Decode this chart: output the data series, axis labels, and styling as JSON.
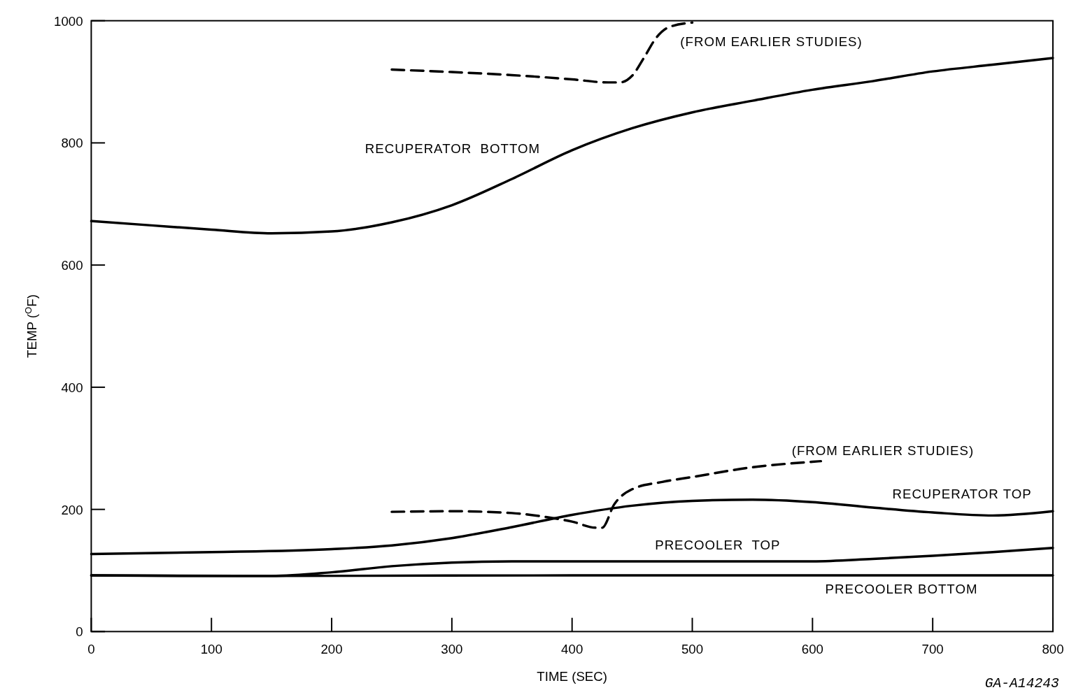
{
  "chart_data": {
    "type": "line",
    "xlabel": "TIME (SEC)",
    "ylabel": "TEMP ($^{O}$F)",
    "xlim": [
      0,
      800
    ],
    "ylim": [
      0,
      1000
    ],
    "xticks": [
      0,
      100,
      200,
      300,
      400,
      500,
      600,
      700,
      800
    ],
    "yticks": [
      0,
      200,
      400,
      600,
      800,
      1000
    ],
    "grid": false,
    "marker": "none",
    "series": [
      {
        "name": "RECUPERATOR  BOTTOM",
        "color": "#000000",
        "line_style": "solid",
        "x": [
          0,
          50,
          100,
          150,
          200,
          250,
          300,
          350,
          400,
          450,
          500,
          550,
          600,
          650,
          700,
          750,
          800
        ],
        "values": [
          672,
          665,
          658,
          652,
          655,
          670,
          698,
          741,
          788,
          824,
          850,
          869,
          887,
          901,
          917,
          928,
          939
        ]
      },
      {
        "name": "(FROM EARLIER STUDIES)",
        "color": "#000000",
        "line_style": "dashed",
        "x": [
          250,
          300,
          350,
          400,
          430,
          440,
          450,
          460,
          470,
          480,
          500
        ],
        "values": [
          920,
          916,
          911,
          904,
          899,
          899,
          910,
          940,
          972,
          989,
          997
        ]
      },
      {
        "name": "RECUPERATOR TOP",
        "color": "#000000",
        "line_style": "solid",
        "x": [
          0,
          100,
          200,
          250,
          300,
          350,
          400,
          450,
          500,
          550,
          600,
          650,
          700,
          750,
          800
        ],
        "values": [
          127,
          130,
          135,
          141,
          153,
          171,
          191,
          206,
          214,
          216,
          212,
          203,
          195,
          190,
          197
        ]
      },
      {
        "name": "(FROM EARLIER STUDIES)",
        "color": "#000000",
        "line_style": "dashed",
        "x": [
          250,
          300,
          350,
          380,
          400,
          420,
          425,
          435,
          450,
          475,
          500,
          550,
          600,
          607
        ],
        "values": [
          196,
          197,
          194,
          187,
          180,
          170,
          170,
          208,
          233,
          245,
          253,
          269,
          278,
          279
        ]
      },
      {
        "name": "PRECOOLER  TOP",
        "color": "#000000",
        "line_style": "solid",
        "x": [
          0,
          100,
          150,
          200,
          250,
          300,
          350,
          400,
          500,
          600,
          650,
          700,
          750,
          800
        ],
        "values": [
          92,
          91,
          91,
          97,
          107,
          113,
          115,
          115,
          115,
          115,
          119,
          124,
          130,
          137
        ]
      },
      {
        "name": "PRECOOLER BOTTOM",
        "color": "#000000",
        "line_style": "solid",
        "x": [
          0,
          150,
          400,
          800
        ],
        "values": [
          92,
          91,
          92,
          92
        ]
      }
    ],
    "annotations": [
      "GA-A14243"
    ]
  }
}
